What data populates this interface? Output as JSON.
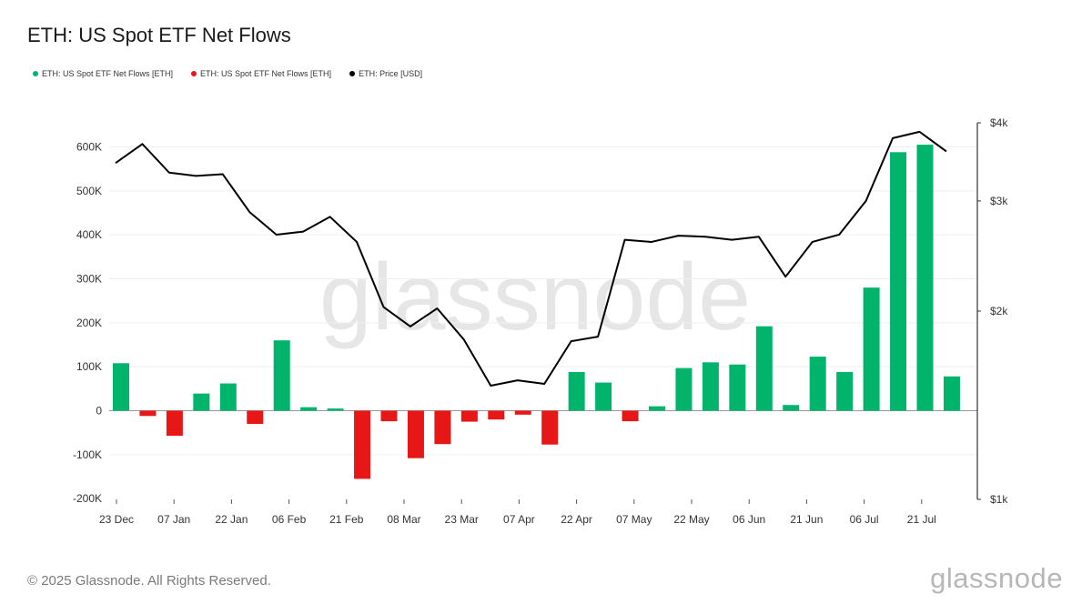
{
  "title": "ETH: US Spot ETF Net Flows",
  "legend": [
    {
      "label": "ETH: US Spot ETF Net Flows [ETH]",
      "color": "#00b46c"
    },
    {
      "label": "ETH: US Spot ETF Net Flows [ETH]",
      "color": "#e81717"
    },
    {
      "label": "ETH: Price [USD]",
      "color": "#000000"
    }
  ],
  "watermark": "glassnode",
  "footer": "© 2025 Glassnode. All Rights Reserved.",
  "brand": "glassnode",
  "chart_data": {
    "type": "bar",
    "x_tick_labels": [
      "23 Dec",
      "07 Jan",
      "22 Jan",
      "06 Feb",
      "21 Feb",
      "08 Mar",
      "23 Mar",
      "07 Apr",
      "22 Apr",
      "07 May",
      "22 May",
      "06 Jun",
      "21 Jun",
      "06 Jul",
      "21 Jul"
    ],
    "left_axis": {
      "ylim": [
        -200000,
        600000
      ],
      "ticks": [
        -200000,
        -100000,
        0,
        100000,
        200000,
        300000,
        400000,
        500000,
        600000
      ],
      "tick_labels": [
        "-200K",
        "-100K",
        "0",
        "100K",
        "200K",
        "300K",
        "400K",
        "500K",
        "600K"
      ]
    },
    "right_axis": {
      "scale": "log",
      "ylim": [
        1000,
        4000
      ],
      "ticks": [
        1000,
        2000,
        3000,
        4000
      ],
      "tick_labels": [
        "$1k",
        "$2k",
        "$3k",
        "$4k"
      ]
    },
    "positive_color": "#00b46c",
    "negative_color": "#e81717",
    "price_color": "#000000",
    "net_flows": [
      108000,
      -12000,
      -57000,
      39000,
      62000,
      -30000,
      160000,
      8000,
      5000,
      -155000,
      -24000,
      -108000,
      -76000,
      -25000,
      -20000,
      -9000,
      -77000,
      88000,
      64000,
      -24000,
      10000,
      97000,
      110000,
      105000,
      192000,
      13000,
      123000,
      88000,
      280000,
      588000,
      605000,
      78000
    ],
    "price": [
      3450,
      3700,
      3330,
      3290,
      3310,
      2880,
      2650,
      2680,
      2830,
      2580,
      2030,
      1890,
      2020,
      1800,
      1520,
      1550,
      1530,
      1790,
      1820,
      2600,
      2580,
      2640,
      2630,
      2600,
      2630,
      2270,
      2580,
      2650,
      3000,
      3780,
      3870,
      3600
    ]
  }
}
